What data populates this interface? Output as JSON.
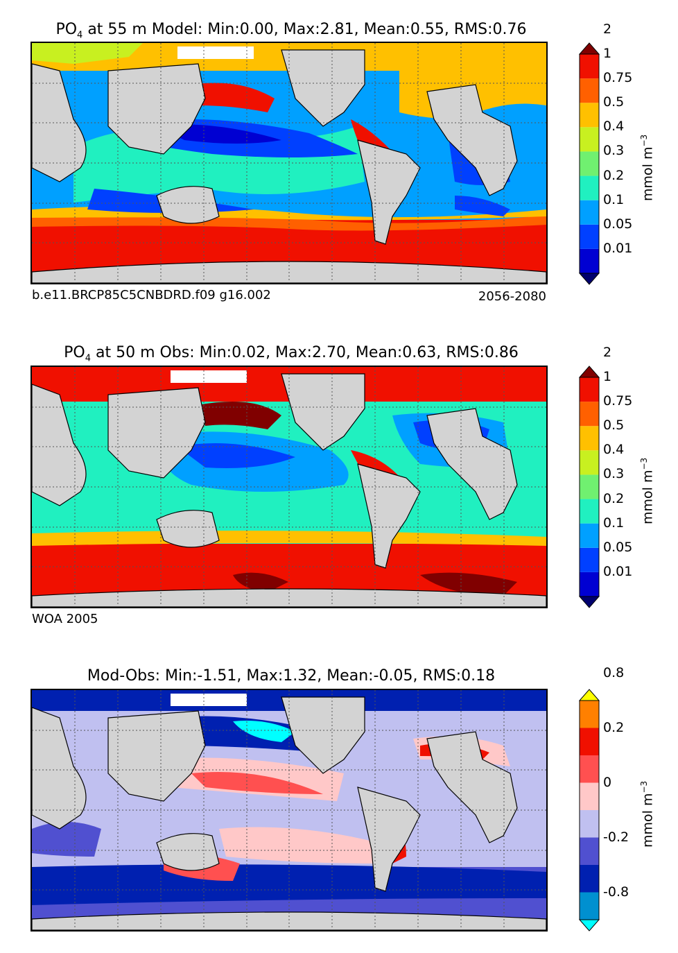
{
  "panels": [
    {
      "title_prefix": "PO",
      "title_sub": "4",
      "title_rest": " at 55 m Model: Min:0.00, Max:2.81, Mean:0.55, RMS:0.76",
      "note_left": "b.e11.BRCP85C5CNBDRD.f09 g16.002",
      "note_right": "2056-2080",
      "colorbar": {
        "colors": [
          "#00006e",
          "#0000d2",
          "#0040ff",
          "#00a0ff",
          "#20f0c0",
          "#70f070",
          "#c8f020",
          "#ffc000",
          "#ff6000",
          "#f01000",
          "#800000"
        ],
        "tick_labels": [
          "0.01",
          "0.05",
          "0.1",
          "0.2",
          "0.3",
          "0.4",
          "0.5",
          "0.75",
          "1",
          "2"
        ],
        "units": "mmol m",
        "units_sup": "−3"
      }
    },
    {
      "title_prefix": "PO",
      "title_sub": "4",
      "title_rest": " at 50 m Obs: Min:0.02, Max:2.70, Mean:0.63, RMS:0.86",
      "note_left": "WOA 2005",
      "note_right": "",
      "colorbar": {
        "colors": [
          "#00006e",
          "#0000d2",
          "#0040ff",
          "#00a0ff",
          "#20f0c0",
          "#70f070",
          "#c8f020",
          "#ffc000",
          "#ff6000",
          "#f01000",
          "#800000"
        ],
        "tick_labels": [
          "0.01",
          "0.05",
          "0.1",
          "0.2",
          "0.3",
          "0.4",
          "0.5",
          "0.75",
          "1",
          "2"
        ],
        "units": "mmol m",
        "units_sup": "−3"
      }
    },
    {
      "title_prefix": "",
      "title_sub": "",
      "title_rest": "Mod-Obs: Min:-1.51, Max:1.32, Mean:-0.05, RMS:0.18",
      "note_left": "",
      "note_right": "",
      "colorbar": {
        "colors": [
          "#00ffff",
          "#0090d0",
          "#0020b0",
          "#5050d0",
          "#c0c0f0",
          "#ffc8c8",
          "#ff5050",
          "#f01000",
          "#ff8000",
          "#ffff00"
        ],
        "tick_labels": [
          "-0.8",
          "",
          "-0.2",
          "",
          "0",
          "",
          "0.2",
          "",
          "0.8"
        ],
        "units": "mmol m",
        "units_sup": "−3"
      }
    }
  ],
  "map_colors": {
    "land": "#d3d3d3",
    "coast": "#000000",
    "grid": "#555555",
    "no_data": "#ffffff"
  }
}
